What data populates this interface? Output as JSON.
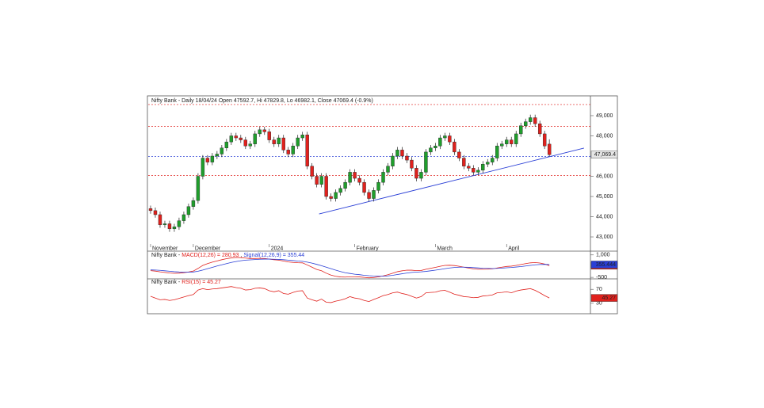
{
  "chart_data": [
    {
      "type": "candlestick",
      "title": "Nifty Bank - Daily 18/04/24 Open 47592.7, Hi 47829.8, Lo 46982.1, Close 47069.4 (-0.9%)",
      "categories": [
        "November",
        null,
        null,
        null,
        null,
        null,
        null,
        null,
        null,
        "December",
        null,
        null,
        null,
        null,
        null,
        null,
        null,
        null,
        null,
        null,
        null,
        null,
        null,
        null,
        null,
        "2024",
        null,
        null,
        null,
        null,
        null,
        null,
        null,
        null,
        null,
        null,
        null,
        null,
        null,
        null,
        null,
        null,
        null,
        "February",
        null,
        null,
        null,
        null,
        null,
        null,
        null,
        null,
        null,
        null,
        null,
        null,
        null,
        null,
        null,
        null,
        "March",
        null,
        null,
        null,
        null,
        null,
        null,
        null,
        null,
        null,
        null,
        null,
        null,
        null,
        null,
        "April",
        null,
        null,
        null,
        null,
        null,
        null,
        null,
        null,
        null
      ],
      "open": [
        44400,
        44300,
        44100,
        43600,
        43650,
        43400,
        43500,
        43800,
        44100,
        44500,
        44800,
        46000,
        46900,
        46700,
        47000,
        47100,
        47400,
        47700,
        48000,
        47900,
        47800,
        47500,
        47600,
        48100,
        48300,
        48200,
        47800,
        47600,
        47900,
        47300,
        47100,
        47500,
        47900,
        48050,
        46500,
        46000,
        45600,
        46000,
        45000,
        44900,
        45200,
        45400,
        45700,
        46200,
        45900,
        45700,
        45200,
        44900,
        45300,
        45700,
        46200,
        46500,
        47000,
        47300,
        47000,
        46800,
        46400,
        45900,
        46200,
        47200,
        47400,
        47500,
        47900,
        48000,
        47700,
        47200,
        46900,
        46500,
        46400,
        46200,
        46300,
        46600,
        46700,
        46900,
        47500,
        47600,
        47800,
        47600,
        48100,
        48500,
        48700,
        48900,
        48600,
        48100,
        47592.7
      ],
      "high": [
        44550,
        44450,
        44250,
        43800,
        43800,
        43650,
        43950,
        44250,
        44650,
        44950,
        46150,
        47050,
        47050,
        47150,
        47250,
        47550,
        47850,
        48150,
        48150,
        48050,
        47950,
        47750,
        48250,
        48450,
        48450,
        48350,
        47950,
        48050,
        48050,
        47450,
        47650,
        48050,
        48200,
        48200,
        46650,
        46150,
        46150,
        46150,
        45150,
        45350,
        45550,
        45850,
        46350,
        46350,
        46050,
        45850,
        45350,
        45450,
        45850,
        46350,
        46650,
        47150,
        47450,
        47450,
        47150,
        46950,
        46550,
        46350,
        47350,
        47550,
        47650,
        48050,
        48150,
        48150,
        47850,
        47350,
        47050,
        46650,
        46550,
        46450,
        46750,
        46850,
        47050,
        47650,
        47750,
        47950,
        47950,
        48250,
        48650,
        48850,
        49050,
        49050,
        48750,
        48250,
        47829.8
      ],
      "low": [
        44150,
        43950,
        43450,
        43450,
        43250,
        43250,
        43350,
        43650,
        43950,
        44350,
        44650,
        45850,
        46550,
        46550,
        46850,
        46950,
        47250,
        47550,
        47750,
        47650,
        47350,
        47350,
        47450,
        47950,
        48050,
        47650,
        47450,
        47450,
        47150,
        46950,
        46950,
        47350,
        47750,
        46350,
        45850,
        45450,
        45450,
        44850,
        44750,
        44750,
        45050,
        45250,
        45550,
        45750,
        45550,
        45050,
        44750,
        44750,
        45150,
        45550,
        46050,
        46350,
        46850,
        46850,
        46650,
        46250,
        45750,
        45750,
        46050,
        47050,
        47250,
        47350,
        47750,
        47550,
        47050,
        46750,
        46350,
        46250,
        46050,
        46050,
        46150,
        46450,
        46550,
        46750,
        47350,
        47450,
        47450,
        47450,
        47950,
        48350,
        48550,
        48450,
        47950,
        47350,
        46982.1
      ],
      "close": [
        44300,
        44100,
        43600,
        43650,
        43400,
        43500,
        43800,
        44100,
        44500,
        44800,
        46000,
        46900,
        46700,
        47000,
        47100,
        47400,
        47700,
        48000,
        47900,
        47800,
        47500,
        47600,
        48100,
        48300,
        48200,
        47800,
        47600,
        47900,
        47300,
        47100,
        47500,
        47900,
        48050,
        46500,
        46000,
        45600,
        46000,
        45000,
        44900,
        45200,
        45400,
        45700,
        46200,
        45900,
        45700,
        45200,
        44900,
        45300,
        45700,
        46200,
        46500,
        47000,
        47300,
        47000,
        46800,
        46400,
        45900,
        46200,
        47200,
        47400,
        47500,
        47900,
        48000,
        47700,
        47200,
        46900,
        46500,
        46400,
        46200,
        46300,
        46600,
        46700,
        46900,
        47500,
        47600,
        47800,
        47600,
        48100,
        48500,
        48700,
        48900,
        48600,
        48100,
        47500,
        47069.4
      ],
      "up_color": "#1f9e2c",
      "down_color": "#e0211d",
      "ylim": [
        42570,
        49940
      ],
      "yticks": [
        {
          "value": 43000,
          "label": "43,000"
        },
        {
          "value": 44000,
          "label": "44,000"
        },
        {
          "value": 45000,
          "label": "45,000"
        },
        {
          "value": 46000,
          "label": "46,000"
        },
        {
          "value": 47000,
          "label": "47,000"
        },
        {
          "value": 48000,
          "label": "48,000"
        },
        {
          "value": 49000,
          "label": "49,000"
        }
      ],
      "levels": [
        {
          "value": 49550,
          "color": "#e0211d"
        },
        {
          "value": 48470,
          "color": "#e0211d"
        },
        {
          "value": 46980,
          "color": "#2a3fd6"
        },
        {
          "value": 46040,
          "color": "#e0211d"
        }
      ],
      "trendline": {
        "x": [
          35.5,
          91.3
        ],
        "values": [
          44137,
          47392
        ],
        "color": "#2a3fd6"
      },
      "last_label": "47,069.4"
    },
    {
      "type": "line",
      "title": "Nifty Bank -",
      "separator": ",",
      "series": [
        {
          "name": "MACD(12,26) = 280.93",
          "color": "#e0211d",
          "box_label": "280.93",
          "values": [
            -50,
            -80,
            -130,
            -170,
            -210,
            -230,
            -220,
            -190,
            -140,
            -80,
            100,
            300,
            420,
            520,
            600,
            680,
            750,
            800,
            830,
            820,
            790,
            760,
            760,
            770,
            760,
            720,
            680,
            650,
            590,
            530,
            500,
            480,
            470,
            330,
            180,
            30,
            -60,
            -220,
            -350,
            -430,
            -470,
            -480,
            -460,
            -460,
            -470,
            -500,
            -530,
            -510,
            -470,
            -400,
            -320,
            -220,
            -120,
            -60,
            -20,
            -20,
            -50,
            -40,
            40,
            110,
            170,
            240,
            300,
            310,
            290,
            240,
            180,
            120,
            70,
            40,
            40,
            50,
            70,
            130,
            180,
            230,
            250,
            300,
            360,
            420,
            470,
            490,
            460,
            390,
            280.93
          ]
        },
        {
          "name": "Signal(12,26,9) = 355.44",
          "color": "#2a3fd6",
          "box_label": "355.444",
          "values": [
            0,
            -10,
            -30,
            -60,
            -90,
            -120,
            -140,
            -150,
            -150,
            -140,
            -90,
            -10,
            80,
            170,
            260,
            340,
            420,
            500,
            560,
            610,
            650,
            670,
            690,
            710,
            720,
            720,
            710,
            700,
            680,
            650,
            620,
            590,
            570,
            520,
            450,
            370,
            280,
            180,
            80,
            -20,
            -110,
            -190,
            -240,
            -290,
            -320,
            -360,
            -390,
            -410,
            -420,
            -420,
            -400,
            -360,
            -310,
            -260,
            -210,
            -170,
            -150,
            -130,
            -100,
            -60,
            -20,
            30,
            80,
            130,
            160,
            180,
            180,
            170,
            150,
            130,
            110,
            100,
            90,
            100,
            120,
            140,
            160,
            190,
            220,
            260,
            300,
            340,
            360,
            370,
            355.444
          ]
        }
      ],
      "ylim": [
        -600,
        1200
      ],
      "yticks": [
        -500,
        {
          "value": 1000,
          "label": "1,000"
        }
      ]
    },
    {
      "type": "line",
      "title": "Nifty Bank -",
      "series": [
        {
          "name": "RSI(15) = 45.27",
          "color": "#e0211d",
          "box_label": "45.27",
          "values": [
            50,
            45,
            40,
            41,
            38,
            40,
            44,
            48,
            52,
            55,
            68,
            72,
            69,
            71,
            72,
            74,
            76,
            78,
            75,
            73,
            68,
            69,
            73,
            74,
            72,
            66,
            63,
            66,
            58,
            56,
            61,
            65,
            66,
            45,
            40,
            36,
            42,
            33,
            32,
            36,
            39,
            43,
            49,
            45,
            43,
            38,
            35,
            41,
            46,
            52,
            55,
            60,
            62,
            58,
            55,
            50,
            45,
            49,
            60,
            61,
            62,
            66,
            67,
            62,
            56,
            53,
            49,
            48,
            46,
            47,
            51,
            52,
            54,
            60,
            61,
            63,
            60,
            65,
            68,
            70,
            72,
            67,
            60,
            52,
            45.27
          ]
        }
      ],
      "ylim": [
        0,
        100
      ],
      "yticks": [
        30,
        70
      ]
    }
  ]
}
